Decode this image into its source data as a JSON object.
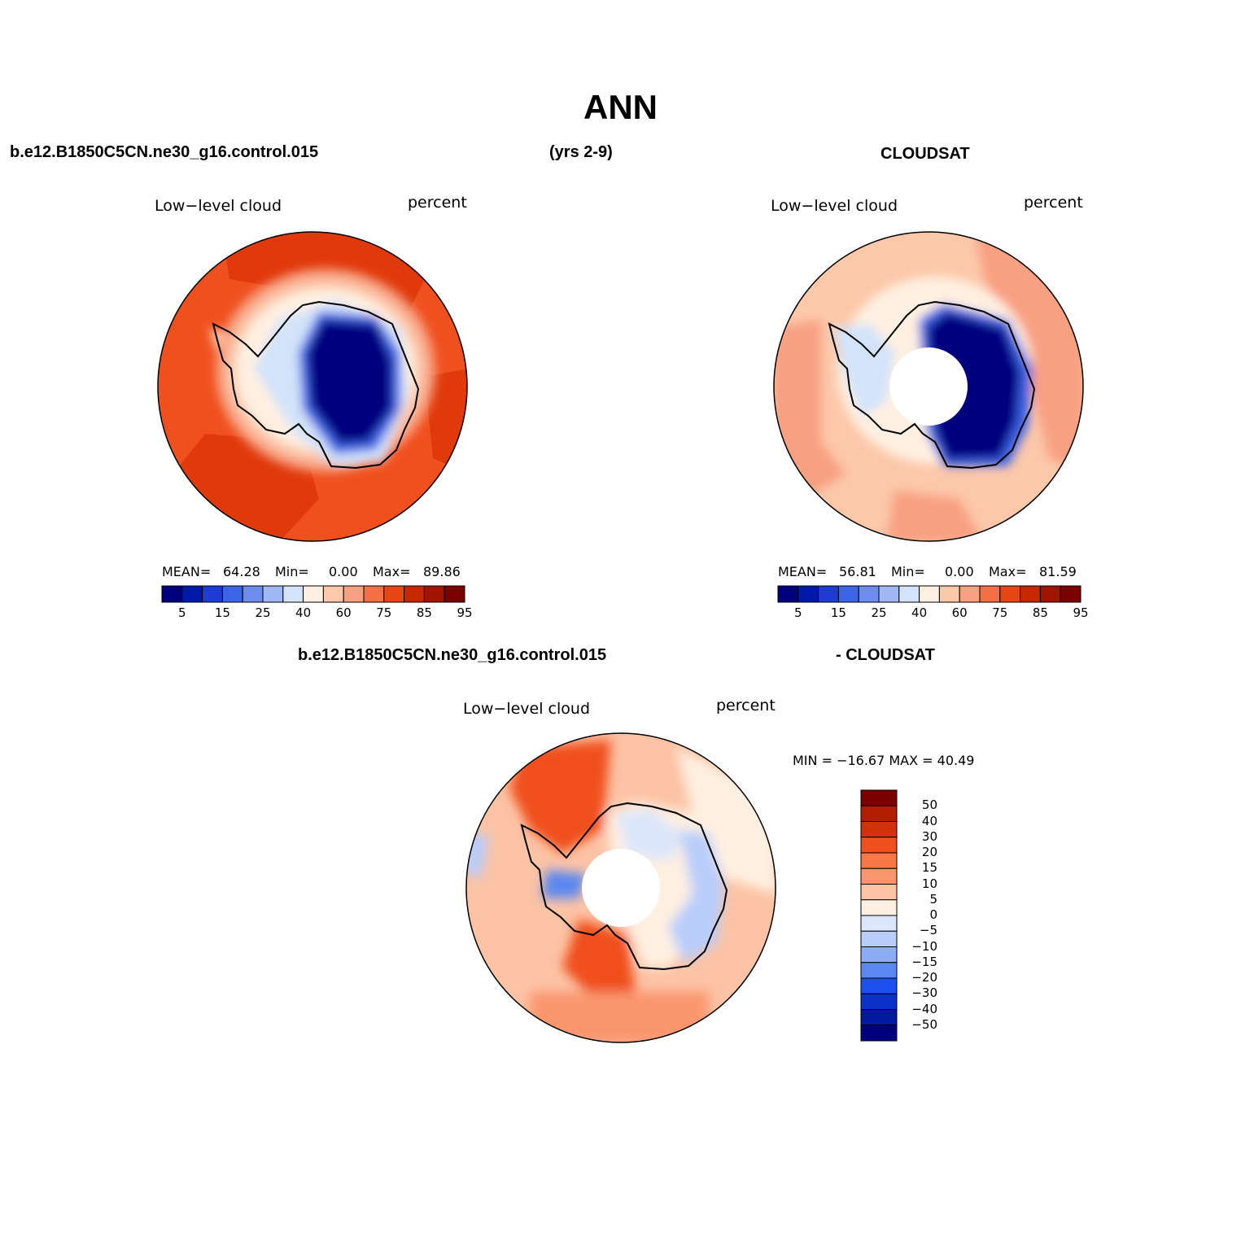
{
  "title": "ANN",
  "headers": {
    "model_case": "b.e12.B1850C5CN.ne30_g16.control.015",
    "years": "(yrs 2-9)",
    "obs": "CLOUDSAT",
    "diff_case": "b.e12.B1850C5CN.ne30_g16.control.015",
    "diff_obs": "- CLOUDSAT"
  },
  "panels": [
    {
      "id": "model",
      "variable_label": "Low−level cloud",
      "units_label": "percent",
      "stats": {
        "mean_label": "MEAN=",
        "mean": "64.28",
        "min_label": "Min=",
        "min": "0.00",
        "max_label": "Max=",
        "max": "89.86"
      }
    },
    {
      "id": "obs",
      "variable_label": "Low−level cloud",
      "units_label": "percent",
      "stats": {
        "mean_label": "MEAN=",
        "mean": "56.81",
        "min_label": "Min=",
        "min": "0.00",
        "max_label": "Max=",
        "max": "81.59"
      }
    },
    {
      "id": "diff",
      "variable_label": "Low−level cloud",
      "units_label": "percent",
      "stats_text": "MIN = −16.67 MAX =   40.49"
    }
  ],
  "colorbar_abs": {
    "colors": [
      "#00007f",
      "#0019aa",
      "#1e3cd2",
      "#3c64e6",
      "#6e8cf0",
      "#a0b9f5",
      "#d2e3fa",
      "#fff0e1",
      "#fcc8aa",
      "#f8a082",
      "#f46e46",
      "#e64614",
      "#c82800",
      "#a01400",
      "#7d0000"
    ],
    "tick_labels": [
      "5",
      "15",
      "25",
      "40",
      "60",
      "75",
      "85",
      "95"
    ]
  },
  "colorbar_diff": {
    "colors_top_to_bottom": [
      "#7d0000",
      "#b41e00",
      "#d2320a",
      "#f0501e",
      "#fa7846",
      "#fa966e",
      "#fcc3a5",
      "#fff0e1",
      "#dce6fa",
      "#b9cdfa",
      "#8cacf5",
      "#5a87f0",
      "#1e50f0",
      "#0a32c8",
      "#0019a0",
      "#00007f"
    ],
    "tick_labels": [
      "50",
      "40",
      "30",
      "20",
      "15",
      "10",
      "5",
      "0",
      "−5",
      "−10",
      "−15",
      "−20",
      "−30",
      "−40",
      "−50"
    ]
  }
}
